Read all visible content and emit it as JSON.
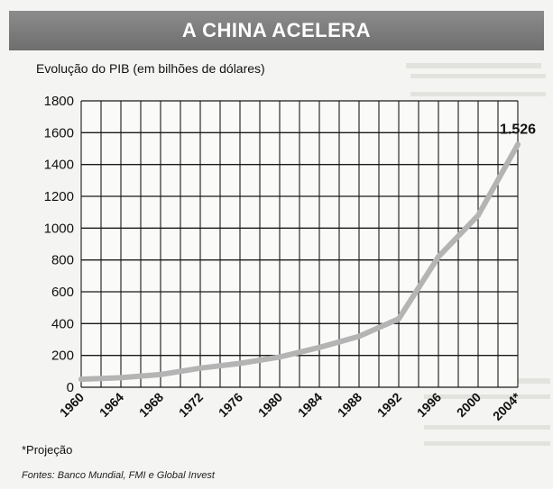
{
  "header": {
    "title": "A CHINA ACELERA"
  },
  "chart_data": {
    "type": "line",
    "title": "A CHINA ACELERA",
    "subtitle": "Evolução do PIB (em bilhões de dólares)",
    "xlabel": "",
    "ylabel": "",
    "x": [
      1960,
      1964,
      1968,
      1972,
      1976,
      1980,
      1984,
      1988,
      1992,
      1996,
      2000,
      2004
    ],
    "x_tick_labels": [
      "1960",
      "1964",
      "1968",
      "1972",
      "1976",
      "1980",
      "1984",
      "1988",
      "1992",
      "1996",
      "2000",
      "2004*"
    ],
    "y_ticks": [
      0,
      200,
      400,
      600,
      800,
      1000,
      1200,
      1400,
      1600,
      1800
    ],
    "ylim": [
      0,
      1800
    ],
    "series": [
      {
        "values": [
          50,
          60,
          80,
          120,
          150,
          190,
          250,
          320,
          430,
          820,
          1080,
          1526
        ]
      }
    ],
    "data_labels": [
      {
        "x": 2004,
        "text": "1.526"
      }
    ],
    "grid": true,
    "line_color": "#b4b4b4"
  },
  "footnote": "*Projeção",
  "sources": "Fontes: Banco Mundial, FMI e Global Invest"
}
